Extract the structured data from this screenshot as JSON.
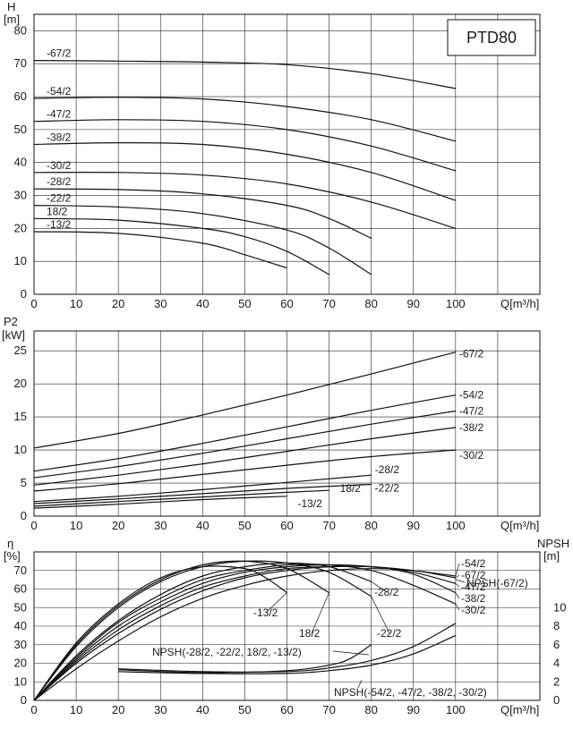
{
  "chart_data": [
    {
      "type": "line",
      "title": "PTD80",
      "ylabel": "H",
      "yunit": "[m]",
      "xlabel": "Q[m³/h]",
      "xlim": [
        0,
        120
      ],
      "ylim": [
        0,
        85
      ],
      "xticks": [
        0,
        10,
        20,
        30,
        40,
        50,
        60,
        70,
        80,
        90,
        100
      ],
      "yticks": [
        0,
        10,
        20,
        30,
        40,
        50,
        60,
        70,
        80
      ],
      "grid": true,
      "series": [
        {
          "name": "-67/2",
          "x": [
            0,
            20,
            40,
            60,
            80,
            100
          ],
          "y": [
            71,
            70.8,
            70.5,
            69.7,
            67,
            62.5
          ]
        },
        {
          "name": "-54/2",
          "x": [
            0,
            20,
            40,
            60,
            80,
            100
          ],
          "y": [
            59.5,
            59.8,
            59.3,
            57,
            53,
            46.5
          ]
        },
        {
          "name": "-47/2",
          "x": [
            0,
            20,
            40,
            60,
            80,
            100
          ],
          "y": [
            52.5,
            53,
            52.5,
            50,
            45,
            37.5
          ]
        },
        {
          "name": "-38/2",
          "x": [
            0,
            20,
            40,
            60,
            80,
            100
          ],
          "y": [
            45.5,
            46,
            45.5,
            42.5,
            37,
            28.5
          ]
        },
        {
          "name": "-30/2",
          "x": [
            0,
            20,
            40,
            60,
            80,
            100
          ],
          "y": [
            37,
            37,
            36.2,
            33.5,
            28,
            20
          ]
        },
        {
          "name": "-28/2",
          "x": [
            0,
            20,
            40,
            60,
            70,
            80
          ],
          "y": [
            32,
            31.8,
            30.5,
            27,
            23,
            17
          ]
        },
        {
          "name": "-22/2",
          "x": [
            0,
            20,
            40,
            60,
            70,
            80
          ],
          "y": [
            27,
            26.5,
            24.5,
            19.5,
            14,
            6
          ]
        },
        {
          "name": "18/2",
          "x": [
            0,
            20,
            40,
            50,
            60,
            70
          ],
          "y": [
            23,
            22.5,
            20,
            17.5,
            13,
            6
          ]
        },
        {
          "name": "-13/2",
          "x": [
            0,
            20,
            40,
            50,
            55,
            60
          ],
          "y": [
            19,
            18.5,
            15.5,
            12,
            10,
            8
          ]
        }
      ]
    },
    {
      "type": "line",
      "ylabel": "P2",
      "yunit": "[kW]",
      "xlabel": "Q[m³/h]",
      "xlim": [
        0,
        120
      ],
      "ylim": [
        0,
        28
      ],
      "xticks": [
        0,
        10,
        20,
        30,
        40,
        50,
        60,
        70,
        80,
        90,
        100
      ],
      "yticks": [
        0,
        5,
        10,
        15,
        20,
        25
      ],
      "grid": true,
      "series": [
        {
          "name": "-67/2",
          "x": [
            0,
            20,
            40,
            60,
            80,
            100
          ],
          "y": [
            10.3,
            12.5,
            15.3,
            18.3,
            21.5,
            24.8
          ]
        },
        {
          "name": "-54/2",
          "x": [
            0,
            20,
            40,
            60,
            80,
            100
          ],
          "y": [
            6.8,
            8.7,
            11,
            13.5,
            16,
            18.3
          ]
        },
        {
          "name": "-47/2",
          "x": [
            0,
            20,
            40,
            60,
            80,
            100
          ],
          "y": [
            5.8,
            7.5,
            9.5,
            11.7,
            13.9,
            15.9
          ]
        },
        {
          "name": "-38/2",
          "x": [
            0,
            20,
            40,
            60,
            80,
            100
          ],
          "y": [
            4.7,
            6.2,
            7.9,
            9.8,
            11.7,
            13.4
          ]
        },
        {
          "name": "-30/2",
          "x": [
            0,
            20,
            40,
            60,
            80,
            100
          ],
          "y": [
            3.8,
            4.9,
            6.3,
            7.7,
            9,
            10
          ]
        },
        {
          "name": "-28/2",
          "x": [
            0,
            20,
            40,
            60,
            80
          ],
          "y": [
            2.2,
            3,
            4,
            5.1,
            6.2
          ]
        },
        {
          "name": "-22/2",
          "x": [
            0,
            20,
            40,
            60,
            80
          ],
          "y": [
            1.9,
            2.6,
            3.4,
            4.2,
            4.8
          ]
        },
        {
          "name": "18/2",
          "x": [
            0,
            20,
            40,
            60,
            70
          ],
          "y": [
            1.5,
            2.2,
            2.9,
            3.6,
            3.9
          ]
        },
        {
          "name": "-13/2",
          "x": [
            0,
            20,
            40,
            60
          ],
          "y": [
            1.2,
            1.8,
            2.5,
            3
          ]
        }
      ]
    },
    {
      "type": "line",
      "ylabel": "η",
      "yunit": "[%]",
      "y2label": "NPSH",
      "y2unit": "[m]",
      "xlabel": "Q[m³/h]",
      "xlim": [
        0,
        120
      ],
      "ylim": [
        0,
        80
      ],
      "y2lim": [
        0,
        16
      ],
      "xticks": [
        0,
        10,
        20,
        30,
        40,
        50,
        60,
        70,
        80,
        90,
        100
      ],
      "yticks": [
        0,
        10,
        20,
        30,
        40,
        50,
        60,
        70
      ],
      "y2ticks": [
        0,
        2,
        4,
        6,
        8,
        10
      ],
      "grid": true,
      "series": [
        {
          "name": "-13/2",
          "x": [
            0,
            10,
            20,
            30,
            40,
            50,
            55,
            60
          ],
          "y": [
            0,
            31,
            52,
            66,
            72,
            71,
            66,
            58
          ]
        },
        {
          "name": "18/2",
          "x": [
            0,
            10,
            20,
            30,
            40,
            50,
            60,
            70
          ],
          "y": [
            0,
            30,
            51,
            65,
            73,
            75,
            71,
            58
          ]
        },
        {
          "name": "-22/2",
          "x": [
            0,
            10,
            20,
            30,
            40,
            50,
            60,
            70,
            80
          ],
          "y": [
            0,
            29,
            50,
            64,
            72,
            75,
            74,
            69,
            56
          ]
        },
        {
          "name": "-28/2",
          "x": [
            0,
            10,
            20,
            30,
            40,
            50,
            60,
            70,
            80
          ],
          "y": [
            0,
            24,
            43,
            57,
            67,
            72,
            74,
            72,
            64
          ]
        },
        {
          "name": "-54/2",
          "x": [
            0,
            10,
            20,
            30,
            40,
            50,
            60,
            70,
            80,
            90,
            100
          ],
          "y": [
            0,
            20,
            36,
            49,
            59,
            66,
            70,
            72,
            72,
            70,
            67
          ]
        },
        {
          "name": "-67/2",
          "x": [
            0,
            10,
            20,
            30,
            40,
            50,
            60,
            70,
            80,
            90,
            100
          ],
          "y": [
            0,
            17,
            32,
            45,
            55,
            62,
            67,
            70,
            71,
            70,
            66
          ]
        },
        {
          "name": "-47/2",
          "x": [
            0,
            10,
            20,
            30,
            40,
            50,
            60,
            70,
            80,
            90,
            100
          ],
          "y": [
            0,
            21,
            38,
            51,
            61,
            67,
            71,
            72,
            72,
            69,
            63
          ]
        },
        {
          "name": "-38/2",
          "x": [
            0,
            10,
            20,
            30,
            40,
            50,
            60,
            70,
            80,
            90,
            100
          ],
          "y": [
            0,
            22,
            40,
            53,
            63,
            69,
            72,
            73,
            72,
            68,
            58
          ]
        },
        {
          "name": "-30/2",
          "x": [
            0,
            10,
            20,
            30,
            40,
            50,
            60,
            70,
            80,
            90,
            100
          ],
          "y": [
            0,
            23,
            42,
            55,
            65,
            70,
            73,
            73,
            70,
            62,
            52
          ]
        }
      ],
      "npsh_series": [
        {
          "name": "NPSH(-28/2, -22/2,  18/2, -13/2)",
          "x": [
            20,
            40,
            60,
            70,
            75,
            80
          ],
          "y": [
            3.3,
            3,
            3.2,
            3.8,
            4.5,
            6
          ]
        },
        {
          "name": "NPSH(-54/2, -47/2, -38/2, -30/2)",
          "x": [
            20,
            40,
            60,
            70,
            80,
            90,
            100
          ],
          "y": [
            3.1,
            2.9,
            2.9,
            3.2,
            3.8,
            5,
            7
          ]
        },
        {
          "name": "NPSH(-67/2)",
          "x": [
            20,
            40,
            60,
            70,
            80,
            90,
            100
          ],
          "y": [
            3.4,
            3.1,
            3.1,
            3.5,
            4.3,
            5.8,
            8.3
          ]
        }
      ]
    }
  ]
}
